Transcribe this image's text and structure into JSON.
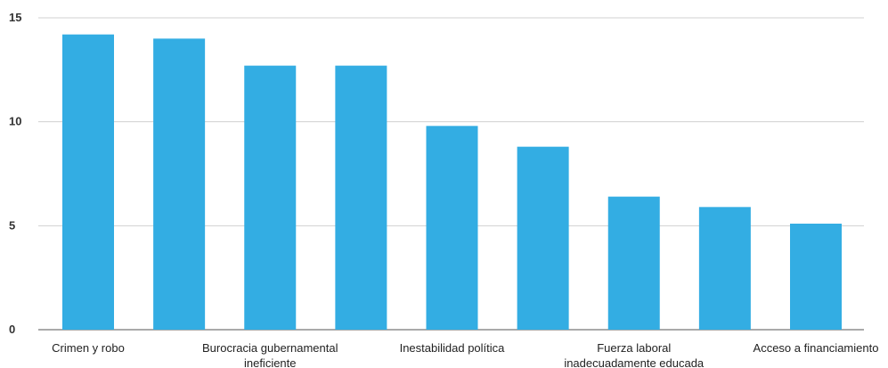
{
  "chart_data": {
    "type": "bar",
    "categories": [
      [
        "Crimen y robo"
      ],
      [],
      [
        "Burocracia gubernamental",
        "ineficiente"
      ],
      [],
      [
        "Inestabilidad política"
      ],
      [],
      [
        "Fuerza laboral",
        "inadecuadamente educada"
      ],
      [],
      [
        "Acceso a financiamiento"
      ]
    ],
    "values": [
      14.2,
      14.0,
      12.7,
      12.7,
      9.8,
      8.8,
      6.4,
      5.9,
      5.1
    ],
    "ylim": [
      0,
      15
    ],
    "yticks": [
      "0",
      "5",
      "10",
      "15"
    ],
    "grid": true,
    "legend": "none",
    "colors": {
      "bar": "#33ade3"
    }
  }
}
